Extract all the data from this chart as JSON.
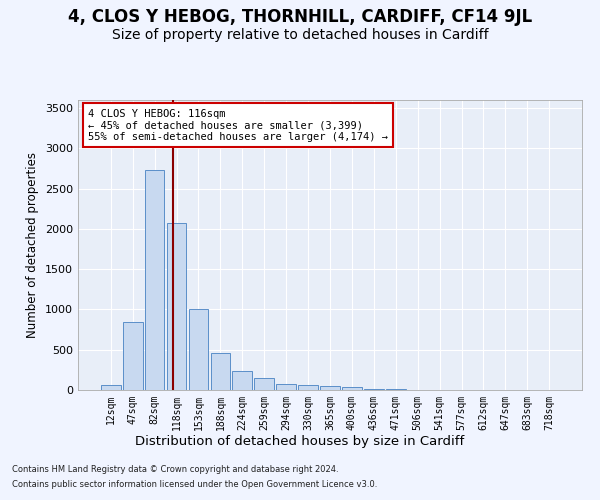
{
  "title": "4, CLOS Y HEBOG, THORNHILL, CARDIFF, CF14 9JL",
  "subtitle": "Size of property relative to detached houses in Cardiff",
  "xlabel": "Distribution of detached houses by size in Cardiff",
  "ylabel": "Number of detached properties",
  "bar_labels": [
    "12sqm",
    "47sqm",
    "82sqm",
    "118sqm",
    "153sqm",
    "188sqm",
    "224sqm",
    "259sqm",
    "294sqm",
    "330sqm",
    "365sqm",
    "400sqm",
    "436sqm",
    "471sqm",
    "506sqm",
    "541sqm",
    "577sqm",
    "612sqm",
    "647sqm",
    "683sqm",
    "718sqm"
  ],
  "bar_values": [
    62,
    850,
    2730,
    2070,
    1010,
    455,
    235,
    148,
    72,
    57,
    48,
    36,
    18,
    8,
    5,
    3,
    2,
    1,
    1,
    0,
    0
  ],
  "bar_color": "#c8d9f0",
  "bar_edge_color": "#5b8fc9",
  "bg_color": "#e8eef8",
  "grid_color": "#ffffff",
  "marker_label": "4 CLOS Y HEBOG: 116sqm",
  "marker_line1": "← 45% of detached houses are smaller (3,399)",
  "marker_line2": "55% of semi-detached houses are larger (4,174) →",
  "marker_color": "#8b0000",
  "annotation_box_color": "#cc0000",
  "ylim": [
    0,
    3600
  ],
  "yticks": [
    0,
    500,
    1000,
    1500,
    2000,
    2500,
    3000,
    3500
  ],
  "footer_line1": "Contains HM Land Registry data © Crown copyright and database right 2024.",
  "footer_line2": "Contains public sector information licensed under the Open Government Licence v3.0.",
  "title_fontsize": 12,
  "subtitle_fontsize": 10
}
